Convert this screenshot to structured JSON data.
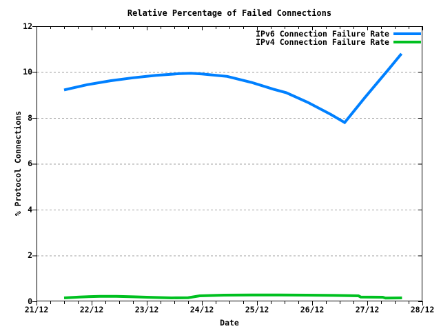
{
  "chart_data": {
    "type": "line",
    "title": "Relative Percentage of Failed Connections",
    "xlabel": "Date",
    "ylabel": "% Protocol Connections",
    "x_axis": {
      "tick_labels": [
        "21/12",
        "22/12",
        "23/12",
        "24/12",
        "25/12",
        "26/12",
        "27/12",
        "28/12"
      ],
      "tick_days": [
        0,
        1,
        2,
        3,
        4,
        5,
        6,
        7
      ],
      "minor_tick_interval_days": 0.25,
      "range_days": [
        0,
        7
      ]
    },
    "y_axis": {
      "tick_labels": [
        "0",
        "2",
        "4",
        "6",
        "8",
        "10",
        "12"
      ],
      "tick_values": [
        0,
        2,
        4,
        6,
        8,
        10,
        12
      ],
      "range": [
        0,
        12
      ],
      "grid": true
    },
    "legend": {
      "position": "top-right-inside"
    },
    "series": [
      {
        "name": "IPv6 Connection Failure Rate",
        "color": "#0080ff",
        "x_days": [
          0.5,
          0.92,
          1.34,
          1.75,
          2.17,
          2.6,
          2.8,
          3.0,
          3.46,
          3.9,
          4.3,
          4.53,
          4.92,
          5.34,
          5.59,
          5.96,
          6.38,
          6.62
        ],
        "values": [
          9.22,
          9.45,
          9.62,
          9.75,
          9.86,
          9.93,
          9.95,
          9.92,
          9.81,
          9.55,
          9.25,
          9.1,
          8.68,
          8.15,
          7.8,
          8.9,
          10.1,
          10.8
        ]
      },
      {
        "name": "IPv4 Connection Failure Rate",
        "color": "#00c020",
        "x_days": [
          0.5,
          0.78,
          1.15,
          1.45,
          1.75,
          2.1,
          2.45,
          2.75,
          2.96,
          3.4,
          3.9,
          4.4,
          4.9,
          5.4,
          5.84,
          5.88,
          6.28,
          6.33,
          6.63
        ],
        "values": [
          0.15,
          0.19,
          0.22,
          0.22,
          0.2,
          0.17,
          0.15,
          0.16,
          0.24,
          0.27,
          0.28,
          0.28,
          0.27,
          0.26,
          0.24,
          0.19,
          0.18,
          0.14,
          0.15
        ]
      }
    ],
    "colors": {
      "background": "#ffffff",
      "axis": "#000000",
      "grid": "#a0a0a0",
      "text": "#000000"
    }
  }
}
